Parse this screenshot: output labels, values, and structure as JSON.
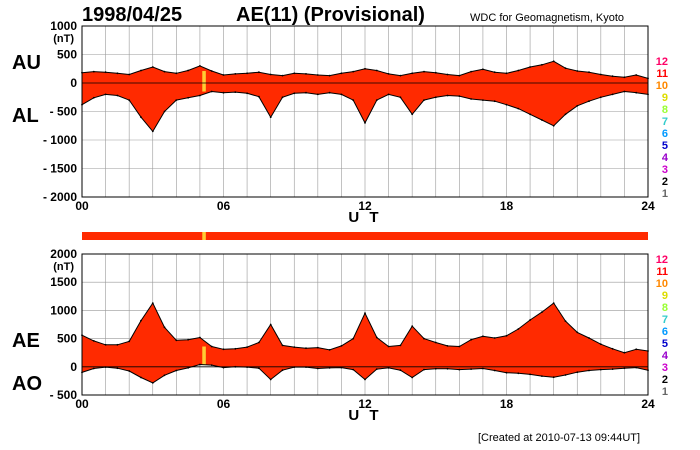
{
  "header": {
    "date": "1998/04/25",
    "title": "AE(11) (Provisional)",
    "source": "WDC for Geomagnetism, Kyoto"
  },
  "footer": {
    "created": "[Created at 2010-07-13 09:44UT]"
  },
  "colors": {
    "fill": "#ff2a00",
    "highlight": "#ffcc33",
    "grid": "#999999",
    "legend": [
      "#ff0066",
      "#ff0000",
      "#ff8800",
      "#dddd00",
      "#99ff33",
      "#33cccc",
      "#0099ff",
      "#0000cc",
      "#9900cc",
      "#cc00cc",
      "#000000",
      "#666666",
      "#bbbbbb"
    ]
  },
  "legend_levels": [
    "12",
    "11",
    "10",
    "9",
    "8",
    "7",
    "6",
    "5",
    "4",
    "3",
    "2",
    "1"
  ],
  "chart_data": [
    {
      "type": "area",
      "panel": "top",
      "left_labels": [
        "AU",
        "AL"
      ],
      "ylabel": "(nT)",
      "xlabel": "U T",
      "xlim": [
        0,
        24
      ],
      "ylim": [
        -2000,
        1000
      ],
      "yticks": [
        1000,
        500,
        0,
        -500,
        -1000,
        -1500,
        -2000
      ],
      "ytick_labels": [
        "1000",
        "500",
        "0",
        "- 500",
        "- 1000",
        "- 1500",
        "- 2000"
      ],
      "xticks": [
        0,
        6,
        12,
        18,
        24
      ],
      "xtick_labels": [
        "00",
        "06",
        "12",
        "18",
        "24"
      ],
      "grid": true,
      "highlight_x": [
        5.1,
        5.25
      ],
      "series": [
        {
          "name": "AU",
          "x": [
            0,
            0.5,
            1,
            1.5,
            2,
            2.5,
            3,
            3.5,
            4,
            4.5,
            5,
            5.5,
            6,
            6.5,
            7,
            7.5,
            8,
            8.5,
            9,
            9.5,
            10,
            10.5,
            11,
            11.5,
            12,
            12.5,
            13,
            13.5,
            14,
            14.5,
            15,
            15.5,
            16,
            16.5,
            17,
            17.5,
            18,
            18.5,
            19,
            19.5,
            20,
            20.5,
            21,
            21.5,
            22,
            22.5,
            23,
            23.5,
            24
          ],
          "values": [
            180,
            200,
            190,
            170,
            150,
            220,
            280,
            200,
            170,
            220,
            300,
            210,
            140,
            160,
            170,
            190,
            150,
            130,
            170,
            160,
            140,
            130,
            170,
            200,
            250,
            220,
            160,
            130,
            170,
            200,
            180,
            150,
            130,
            200,
            240,
            190,
            170,
            220,
            280,
            320,
            380,
            260,
            210,
            190,
            150,
            120,
            100,
            140,
            80
          ]
        },
        {
          "name": "AL",
          "x": [
            0,
            0.5,
            1,
            1.5,
            2,
            2.5,
            3,
            3.5,
            4,
            4.5,
            5,
            5.5,
            6,
            6.5,
            7,
            7.5,
            8,
            8.5,
            9,
            9.5,
            10,
            10.5,
            11,
            11.5,
            12,
            12.5,
            13,
            13.5,
            14,
            14.5,
            15,
            15.5,
            16,
            16.5,
            17,
            17.5,
            18,
            18.5,
            19,
            19.5,
            20,
            20.5,
            21,
            21.5,
            22,
            22.5,
            23,
            23.5,
            24
          ],
          "values": [
            -380,
            -260,
            -200,
            -220,
            -300,
            -600,
            -850,
            -500,
            -300,
            -260,
            -220,
            -150,
            -170,
            -160,
            -180,
            -240,
            -600,
            -250,
            -180,
            -170,
            -200,
            -170,
            -200,
            -300,
            -700,
            -300,
            -200,
            -250,
            -550,
            -300,
            -250,
            -220,
            -230,
            -280,
            -300,
            -320,
            -380,
            -450,
            -550,
            -650,
            -750,
            -550,
            -400,
            -320,
            -250,
            -200,
            -150,
            -170,
            -200
          ]
        }
      ]
    },
    {
      "type": "area",
      "panel": "bottom",
      "left_labels": [
        "AE",
        "AO"
      ],
      "ylabel": "(nT)",
      "xlabel": "U T",
      "xlim": [
        0,
        24
      ],
      "ylim": [
        -500,
        2000
      ],
      "yticks": [
        2000,
        1500,
        1000,
        500,
        0,
        -500
      ],
      "ytick_labels": [
        "2000",
        "1500",
        "1000",
        "500",
        "0",
        "- 500"
      ],
      "xticks": [
        0,
        6,
        12,
        18,
        24
      ],
      "xtick_labels": [
        "00",
        "06",
        "12",
        "18",
        "24"
      ],
      "grid": true,
      "highlight_x": [
        5.1,
        5.25
      ],
      "series": [
        {
          "name": "AE",
          "x": [
            0,
            0.5,
            1,
            1.5,
            2,
            2.5,
            3,
            3.5,
            4,
            4.5,
            5,
            5.5,
            6,
            6.5,
            7,
            7.5,
            8,
            8.5,
            9,
            9.5,
            10,
            10.5,
            11,
            11.5,
            12,
            12.5,
            13,
            13.5,
            14,
            14.5,
            15,
            15.5,
            16,
            16.5,
            17,
            17.5,
            18,
            18.5,
            19,
            19.5,
            20,
            20.5,
            21,
            21.5,
            22,
            22.5,
            23,
            23.5,
            24
          ],
          "values": [
            560,
            460,
            390,
            390,
            450,
            820,
            1130,
            700,
            470,
            480,
            520,
            360,
            310,
            320,
            350,
            430,
            750,
            380,
            350,
            330,
            340,
            300,
            370,
            500,
            950,
            520,
            360,
            380,
            720,
            500,
            430,
            370,
            360,
            480,
            540,
            510,
            550,
            670,
            830,
            970,
            1130,
            810,
            610,
            510,
            400,
            320,
            250,
            310,
            280
          ]
        },
        {
          "name": "AO",
          "x": [
            0,
            0.5,
            1,
            1.5,
            2,
            2.5,
            3,
            3.5,
            4,
            4.5,
            5,
            5.5,
            6,
            6.5,
            7,
            7.5,
            8,
            8.5,
            9,
            9.5,
            10,
            10.5,
            11,
            11.5,
            12,
            12.5,
            13,
            13.5,
            14,
            14.5,
            15,
            15.5,
            16,
            16.5,
            17,
            17.5,
            18,
            18.5,
            19,
            19.5,
            20,
            20.5,
            21,
            21.5,
            22,
            22.5,
            23,
            23.5,
            24
          ],
          "values": [
            -100,
            -30,
            -5,
            -25,
            -75,
            -190,
            -285,
            -150,
            -65,
            -20,
            40,
            30,
            -15,
            0,
            -5,
            -25,
            -225,
            -60,
            -5,
            -5,
            -30,
            -20,
            -15,
            -50,
            -225,
            -40,
            -20,
            -60,
            -190,
            -50,
            -35,
            -35,
            -50,
            -40,
            -30,
            -65,
            -105,
            -115,
            -135,
            -165,
            -185,
            -145,
            -95,
            -65,
            -50,
            -40,
            -25,
            -15,
            -60
          ]
        }
      ]
    }
  ]
}
